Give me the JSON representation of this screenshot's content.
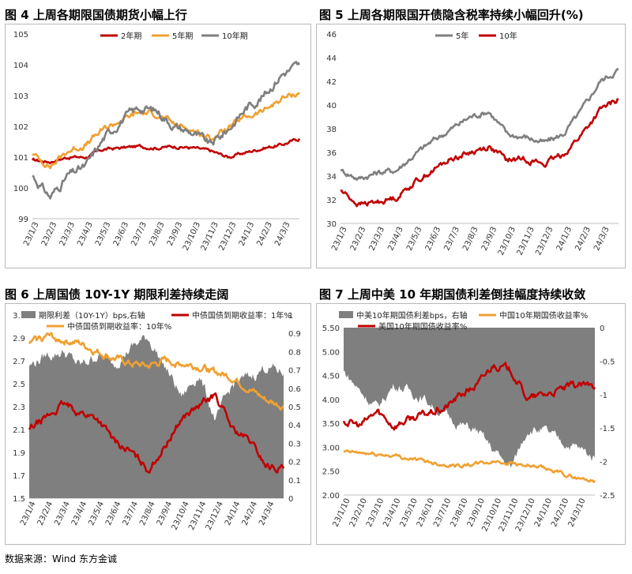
{
  "colors": {
    "red": "#c00000",
    "orange": "#f0a030",
    "gray": "#7f7f7f",
    "shade": "#7f7f7f",
    "axis": "#bfbfbf",
    "text": "#333333"
  },
  "source": "数据来源：Wind 东方金诚",
  "chart_data": [
    {
      "figure": "图 4",
      "title": "上周各期限国债期货小幅上行",
      "type": "line",
      "ylim": [
        99,
        105
      ],
      "yticks": [
        "99",
        "100",
        "101",
        "102",
        "103",
        "104",
        "105"
      ],
      "xticks": [
        "23/1/3",
        "23/2/3",
        "23/3/3",
        "23/4/3",
        "23/5/3",
        "23/6/3",
        "23/7/3",
        "23/8/3",
        "23/9/3",
        "23/10/3",
        "23/11/3",
        "23/12/3",
        "24/1/3",
        "24/2/3",
        "24/3/3"
      ],
      "x": [
        0,
        1,
        2,
        3,
        4,
        5,
        6,
        7,
        8,
        9,
        10,
        11,
        12,
        13,
        14,
        15
      ],
      "legend_position": "top",
      "grid": false,
      "series": [
        {
          "name": "2年期",
          "color": "#c00000",
          "values": [
            100.9,
            100.85,
            101.0,
            101.0,
            101.25,
            101.3,
            101.35,
            101.3,
            101.35,
            101.3,
            101.2,
            101.0,
            101.15,
            101.3,
            101.4,
            101.6
          ]
        },
        {
          "name": "5年期",
          "color": "#f0a030",
          "values": [
            101.1,
            100.7,
            101.2,
            101.4,
            101.9,
            102.2,
            102.45,
            102.4,
            102.05,
            101.9,
            101.6,
            101.95,
            102.3,
            102.5,
            102.9,
            103.1
          ]
        },
        {
          "name": "10年期",
          "color": "#7f7f7f",
          "values": [
            100.4,
            99.7,
            100.4,
            100.7,
            101.6,
            102.2,
            102.6,
            102.5,
            102.0,
            101.8,
            101.4,
            101.9,
            102.6,
            103.0,
            103.7,
            104.0
          ]
        }
      ]
    },
    {
      "figure": "图 5",
      "title": "上周各期限国开债隐含税率持续小幅回升(%)",
      "type": "line",
      "ylim": [
        30,
        46
      ],
      "yticks": [
        "30",
        "32",
        "34",
        "36",
        "38",
        "40",
        "42",
        "44",
        "46"
      ],
      "xticks": [
        "23/1/3",
        "23/2/3",
        "23/3/3",
        "23/4/3",
        "23/5/3",
        "23/6/3",
        "23/7/3",
        "23/8/3",
        "23/9/3",
        "23/10/3",
        "23/11/3",
        "23/12/3",
        "24/1/3",
        "24/2/3",
        "24/3/3"
      ],
      "x": [
        0,
        1,
        2,
        3,
        4,
        5,
        6,
        7,
        8,
        9,
        10,
        11,
        12,
        13,
        14,
        15
      ],
      "legend_position": "top",
      "grid": false,
      "series": [
        {
          "name": "5年",
          "color": "#7f7f7f",
          "values": [
            34.5,
            33.8,
            34.3,
            34.5,
            35.8,
            37.0,
            38.0,
            39.0,
            39.5,
            37.5,
            37.3,
            36.8,
            37.5,
            39.5,
            42.0,
            43.0
          ]
        },
        {
          "name": "10年",
          "color": "#c00000",
          "values": [
            32.8,
            31.6,
            31.8,
            32.2,
            33.5,
            34.5,
            35.5,
            36.0,
            36.5,
            35.3,
            35.5,
            35.0,
            35.8,
            37.5,
            39.5,
            40.5
          ]
        }
      ]
    },
    {
      "figure": "图 6",
      "title": "上周国债 10Y-1Y 期限利差持续走阔",
      "type": "area",
      "ylim_left": [
        1.5,
        3.1
      ],
      "ylim_right": [
        0,
        1.0
      ],
      "yticks_left": [
        "1.5",
        "1.7",
        "1.9",
        "2.1",
        "2.3",
        "2.5",
        "2.7",
        "2.9",
        "3.1"
      ],
      "yticks_right": [
        "0",
        "0.1",
        "0.2",
        "0.3",
        "0.4",
        "0.5",
        "0.6",
        "0.7",
        "0.8",
        "0.9",
        "1"
      ],
      "xticks": [
        "23/1/4",
        "23/2/4",
        "23/3/4",
        "23/4/4",
        "23/5/4",
        "23/6/4",
        "23/7/4",
        "23/8/4",
        "23/9/4",
        "23/10/4",
        "23/11/4",
        "23/12/4",
        "24/1/4",
        "24/2/4",
        "24/3/4"
      ],
      "x": [
        0,
        1,
        2,
        3,
        4,
        5,
        6,
        7,
        8,
        9,
        10,
        11,
        12,
        13,
        14,
        15
      ],
      "legend_position": "top",
      "grid": false,
      "series": [
        {
          "name": "期限利差（10Y-1Y）bps,右轴",
          "color": "#7f7f7f",
          "kind": "area",
          "axis": "right",
          "values": [
            0.72,
            0.78,
            0.8,
            0.72,
            0.78,
            0.74,
            0.82,
            0.88,
            0.72,
            0.55,
            0.68,
            0.42,
            0.62,
            0.66,
            0.72,
            0.68
          ]
        },
        {
          "name": "中债国债到期收益率：1年%",
          "color": "#c00000",
          "kind": "line",
          "axis": "left",
          "values": [
            2.1,
            2.2,
            2.32,
            2.25,
            2.2,
            2.0,
            1.9,
            1.75,
            1.95,
            2.2,
            2.3,
            2.4,
            2.1,
            2.0,
            1.78,
            1.76
          ]
        },
        {
          "name": "中债国债到期收益率：10年%",
          "color": "#f0a030",
          "kind": "line",
          "axis": "left",
          "values": [
            2.85,
            2.92,
            2.88,
            2.85,
            2.78,
            2.72,
            2.67,
            2.65,
            2.7,
            2.68,
            2.65,
            2.6,
            2.55,
            2.45,
            2.35,
            2.3
          ]
        }
      ]
    },
    {
      "figure": "图 7",
      "title": "上周中美 10 年期国债利差倒挂幅度持续收敛",
      "type": "area",
      "ylim_left": [
        2.0,
        5.5
      ],
      "ylim_right": [
        -2.5,
        0
      ],
      "yticks_left": [
        "2.00",
        "2.50",
        "3.00",
        "3.50",
        "4.00",
        "4.50",
        "5.00",
        "5.50"
      ],
      "yticks_right": [
        "-2.5",
        "-2",
        "-1.5",
        "-1",
        "-0.5",
        "0"
      ],
      "xticks": [
        "23/1/10",
        "23/2/10",
        "23/3/10",
        "23/4/10",
        "23/5/10",
        "23/6/10",
        "23/7/10",
        "23/8/10",
        "23/9/10",
        "23/10/10",
        "23/11/10",
        "23/12/10",
        "24/1/10",
        "24/2/10",
        "24/3/10"
      ],
      "x": [
        0,
        1,
        2,
        3,
        4,
        5,
        6,
        7,
        8,
        9,
        10,
        11,
        12,
        13,
        14,
        15
      ],
      "legend_position": "top",
      "grid": false,
      "series": [
        {
          "name": "中美10年期国债利差bps，右轴",
          "color": "#7f7f7f",
          "kind": "area",
          "axis": "right",
          "values": [
            -0.65,
            -0.95,
            -1.2,
            -0.85,
            -0.95,
            -1.1,
            -1.3,
            -1.45,
            -1.55,
            -1.85,
            -2.1,
            -1.5,
            -1.55,
            -1.7,
            -1.8,
            -1.95
          ]
        },
        {
          "name": "中国10年期国债收益率%",
          "color": "#f0a030",
          "kind": "line",
          "axis": "left",
          "values": [
            2.9,
            2.88,
            2.85,
            2.82,
            2.76,
            2.7,
            2.64,
            2.62,
            2.65,
            2.7,
            2.68,
            2.6,
            2.55,
            2.45,
            2.35,
            2.3
          ]
        },
        {
          "name": "美国10年期国债收益率%",
          "color": "#c00000",
          "kind": "line",
          "axis": "left",
          "values": [
            3.55,
            3.45,
            3.75,
            3.45,
            3.6,
            3.7,
            3.8,
            4.1,
            4.3,
            4.75,
            4.6,
            4.0,
            4.1,
            4.2,
            4.3,
            4.25
          ]
        }
      ]
    }
  ]
}
